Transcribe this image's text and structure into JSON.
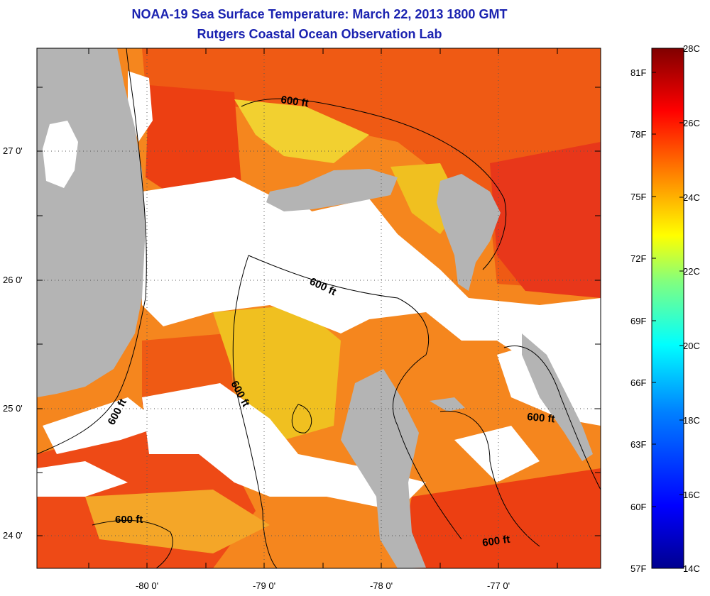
{
  "title": {
    "line1": "NOAA-19 Sea Surface Temperature:  March 22, 2013 1800 GMT",
    "line2": "Rutgers Coastal Ocean Observation Lab"
  },
  "axes": {
    "lat_labels": [
      "27 0'",
      "26 0'",
      "25 0'",
      "24 0'"
    ],
    "lon_labels": [
      "-80 0'",
      "-79 0'",
      "-78 0'",
      "-77 0'"
    ]
  },
  "contours": {
    "label": "600 ft"
  },
  "colorbar": {
    "fahrenheit_labels": [
      "81F",
      "78F",
      "75F",
      "72F",
      "69F",
      "66F",
      "63F",
      "60F",
      "57F"
    ],
    "celsius_labels": [
      "28C",
      "26C",
      "24C",
      "22C",
      "20C",
      "18C",
      "16C",
      "14C"
    ],
    "range_c": [
      14,
      28
    ],
    "colors": [
      "#00008f",
      "#0000ff",
      "#0080ff",
      "#00ffff",
      "#80ff80",
      "#ffff00",
      "#ff8000",
      "#ff0000",
      "#800000"
    ]
  },
  "map_colors": {
    "land": "#b4b4b4",
    "cloud": "#ffffff",
    "warm_sea": "#f03a10",
    "mid_sea": "#f5861e",
    "cool_sea": "#f0c020"
  }
}
